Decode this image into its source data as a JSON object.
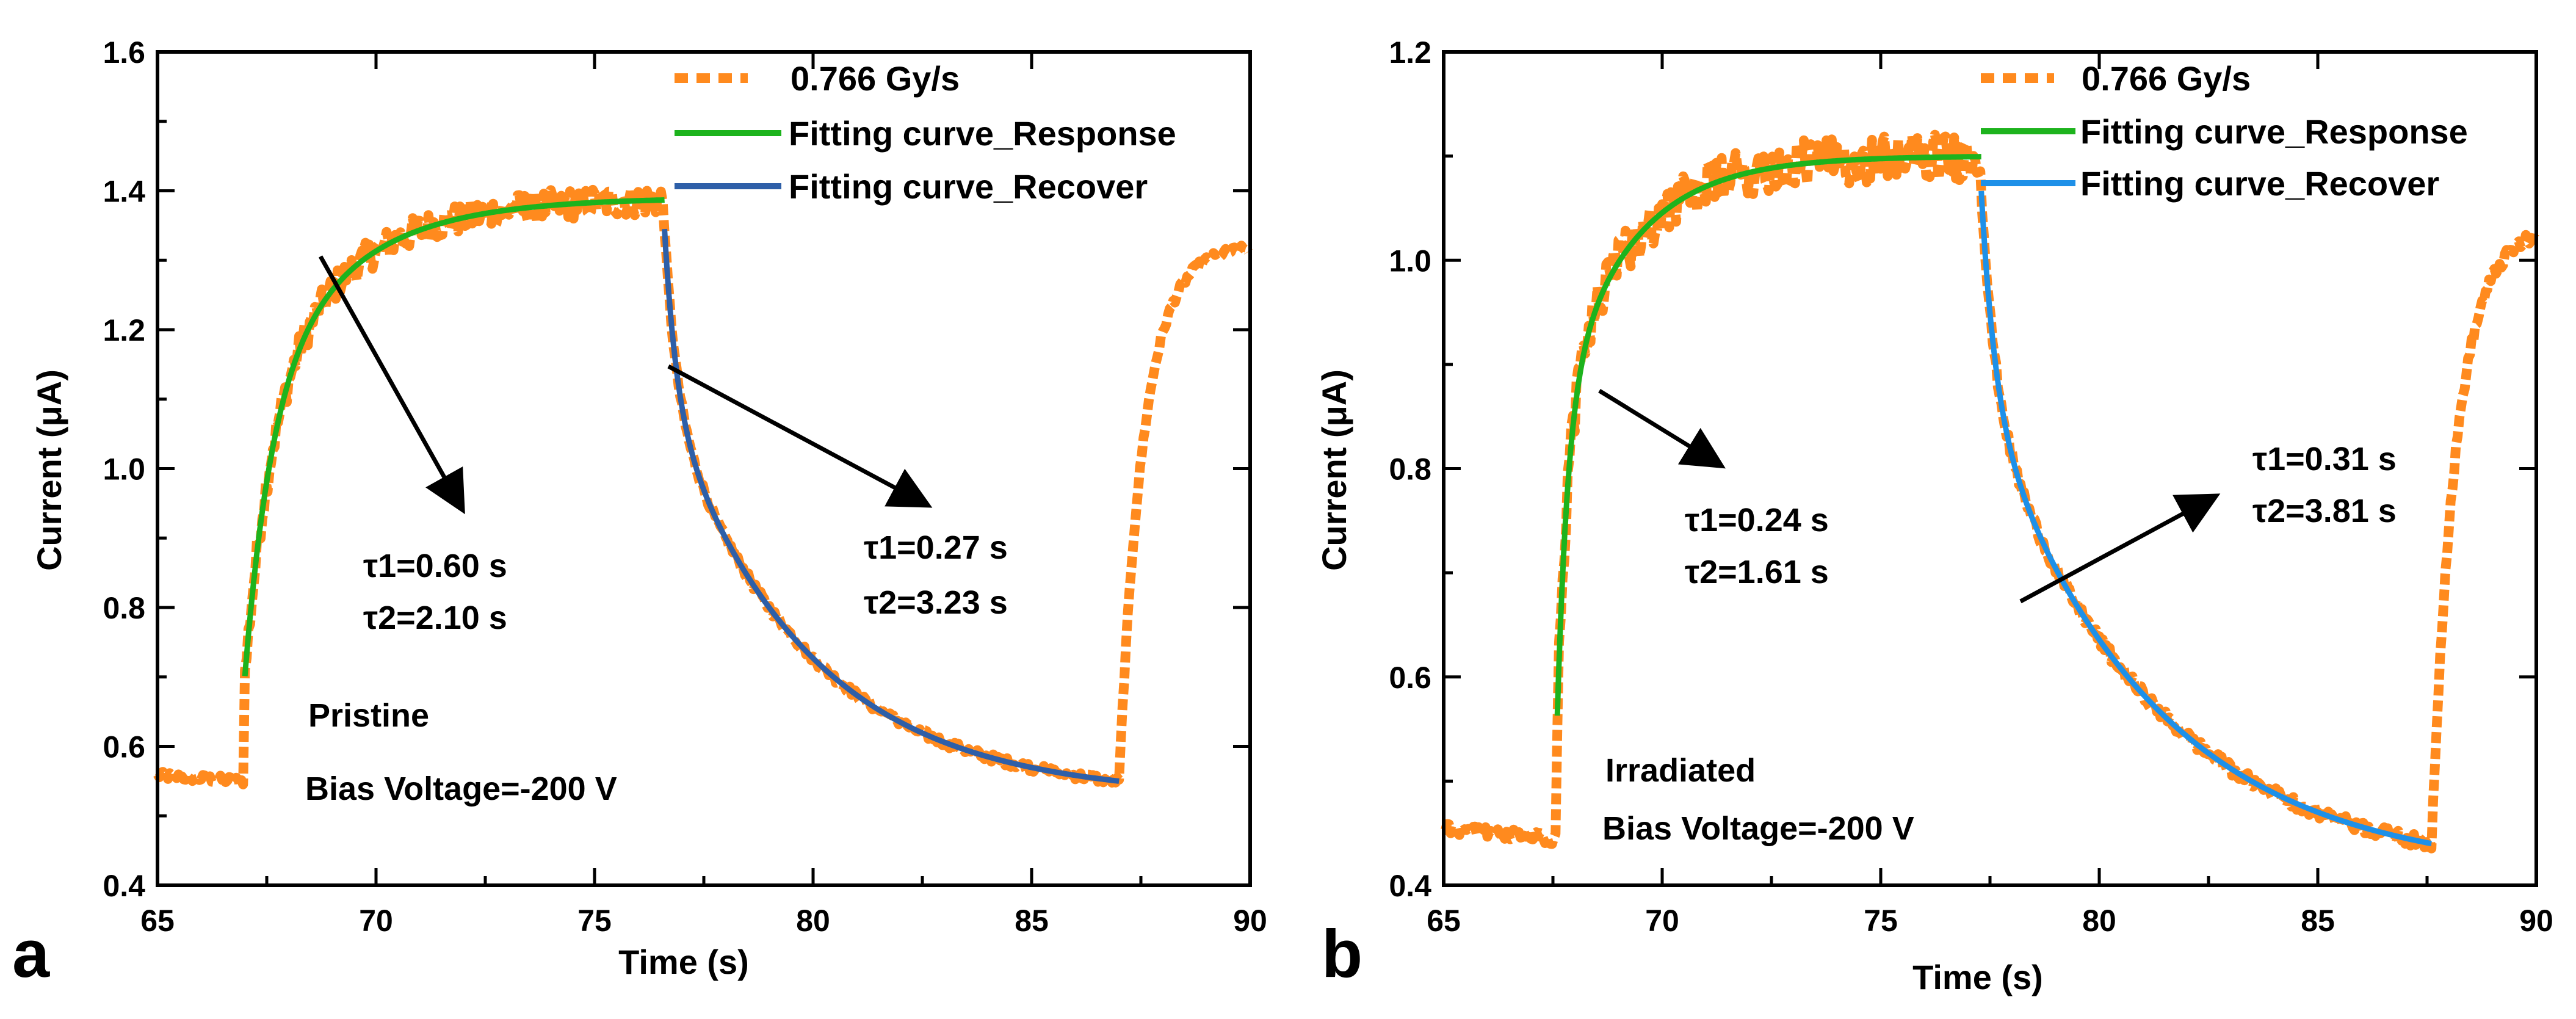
{
  "chart_data": [
    {
      "type": "line",
      "panel_label": "a",
      "xlabel": "Time (s)",
      "ylabel": "Current (μA)",
      "xlim": [
        65,
        90
      ],
      "ylim": [
        0.4,
        1.6
      ],
      "xticks": [
        65,
        70,
        75,
        80,
        85,
        90
      ],
      "yticks": [
        0.4,
        0.6,
        0.8,
        1.0,
        1.2,
        1.4,
        1.6
      ],
      "tick_labels_x": [
        "65",
        "70",
        "75",
        "80",
        "85",
        "90"
      ],
      "tick_labels_y": [
        "0.4",
        "0.6",
        "0.8",
        "1.0",
        "1.2",
        "1.4",
        "1.6"
      ],
      "legend": [
        "0.766 Gy/s",
        "Fitting curve_Response",
        "Fitting curve_Recover"
      ],
      "legend_position": "top-right",
      "series_colors": {
        "data": "#FF8A1E",
        "response": "#1DB31D",
        "recover": "#2E5FA8"
      },
      "params": {
        "base": 0.55,
        "on": 67.0,
        "off": 76.6,
        "end": 87.0,
        "peak": 1.39,
        "min": 0.55,
        "tail_after": 1.32,
        "tau_rise": [
          0.6,
          2.1
        ],
        "tau_decay": [
          0.27,
          3.23
        ]
      },
      "texts": {
        "sample": "Pristine",
        "bias": "Bias Voltage=-200 V",
        "rise_tau1": "τ1=0.60 s",
        "rise_tau2": "τ2=2.10 s",
        "decay_tau1": "τ1=0.27 s",
        "decay_tau2": "τ2=3.23 s"
      }
    },
    {
      "type": "line",
      "panel_label": "b",
      "xlabel": "Time (s)",
      "ylabel": "Current (μA)",
      "xlim": [
        65,
        90
      ],
      "ylim": [
        0.4,
        1.2
      ],
      "xticks": [
        65,
        70,
        75,
        80,
        85,
        90
      ],
      "yticks": [
        0.4,
        0.6,
        0.8,
        1.0,
        1.2
      ],
      "tick_labels_x": [
        "65",
        "70",
        "75",
        "80",
        "85",
        "90"
      ],
      "tick_labels_y": [
        "0.4",
        "0.6",
        "0.8",
        "1.0",
        "1.2"
      ],
      "legend": [
        "0.766 Gy/s",
        "Fitting curve_Response",
        "Fitting curve_Recover"
      ],
      "legend_position": "top-right",
      "series_colors": {
        "data": "#FF8A1E",
        "response": "#1DB31D",
        "recover": "#1E90E8"
      },
      "params": {
        "base": 0.445,
        "on": 67.6,
        "off": 77.3,
        "end": 87.6,
        "peak": 1.1,
        "min": 0.44,
        "tail_after": 1.03,
        "tau_rise": [
          0.24,
          1.61
        ],
        "tau_decay": [
          0.31,
          3.81
        ]
      },
      "texts": {
        "sample": "Irradiated",
        "bias": "Bias Voltage=-200 V",
        "rise_tau1": "τ1=0.24 s",
        "rise_tau2": "τ2=1.61 s",
        "decay_tau1": "τ1=0.31 s",
        "decay_tau2": "τ2=3.81 s"
      }
    }
  ]
}
